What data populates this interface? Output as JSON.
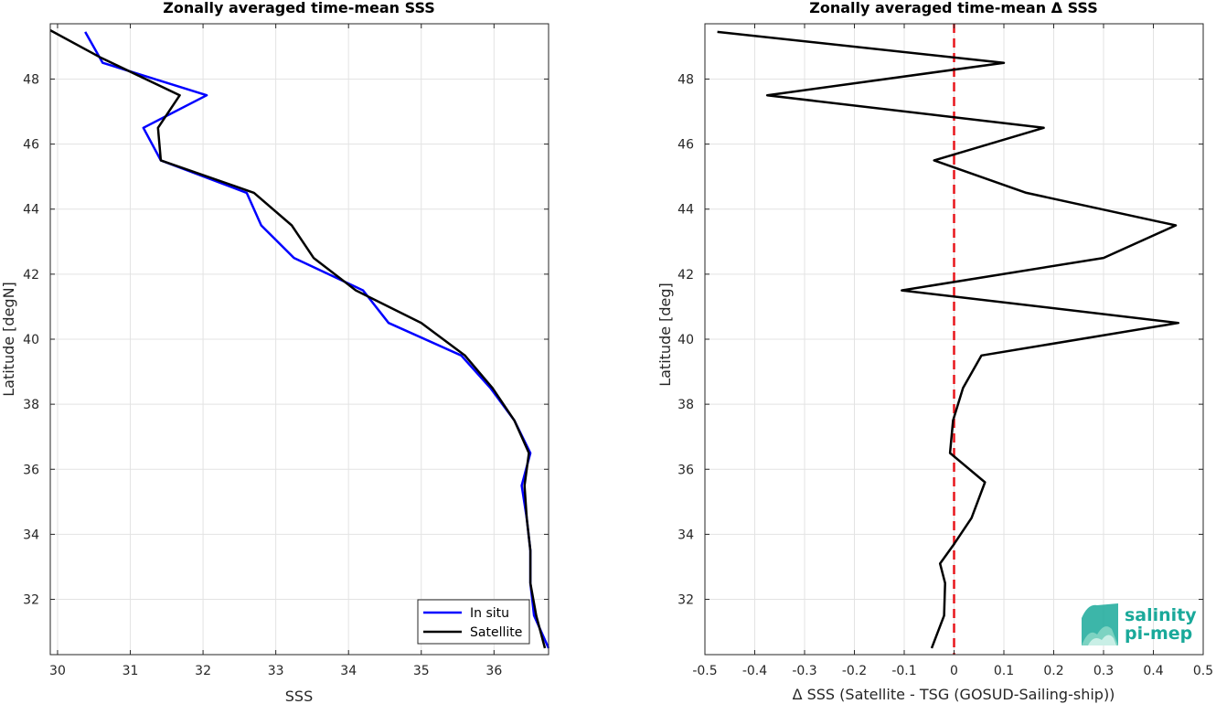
{
  "chart_data": [
    {
      "type": "line",
      "title": "Zonally averaged time-mean SSS",
      "xlabel": "SSS",
      "ylabel": "Latitude [degN]",
      "xlim": [
        29.9,
        36.75
      ],
      "ylim": [
        30.3,
        49.7
      ],
      "xticks": [
        30,
        31,
        32,
        33,
        34,
        35,
        36
      ],
      "yticks": [
        32,
        34,
        36,
        38,
        40,
        42,
        44,
        46,
        48
      ],
      "grid": true,
      "legend_position": "bottom-right",
      "series": [
        {
          "name": "In situ",
          "color": "#0000ff",
          "points": [
            [
              36.75,
              30.5
            ],
            [
              36.55,
              31.5
            ],
            [
              36.5,
              32.5
            ],
            [
              36.5,
              33.5
            ],
            [
              36.45,
              34.5
            ],
            [
              36.38,
              35.5
            ],
            [
              36.5,
              36.5
            ],
            [
              36.28,
              37.5
            ],
            [
              35.95,
              38.5
            ],
            [
              35.55,
              39.5
            ],
            [
              34.55,
              40.5
            ],
            [
              34.2,
              41.5
            ],
            [
              33.25,
              42.5
            ],
            [
              32.8,
              43.5
            ],
            [
              32.6,
              44.5
            ],
            [
              31.42,
              45.5
            ],
            [
              31.18,
              46.5
            ],
            [
              32.05,
              47.5
            ],
            [
              30.62,
              48.5
            ],
            [
              30.38,
              49.45
            ]
          ]
        },
        {
          "name": "Satellite",
          "color": "#000000",
          "points": [
            [
              36.7,
              30.5
            ],
            [
              36.58,
              31.5
            ],
            [
              36.5,
              32.5
            ],
            [
              36.5,
              33.5
            ],
            [
              36.45,
              34.5
            ],
            [
              36.42,
              35.5
            ],
            [
              36.48,
              36.5
            ],
            [
              36.28,
              37.5
            ],
            [
              35.98,
              38.5
            ],
            [
              35.6,
              39.5
            ],
            [
              35.0,
              40.5
            ],
            [
              34.1,
              41.5
            ],
            [
              33.52,
              42.5
            ],
            [
              33.22,
              43.5
            ],
            [
              32.7,
              44.5
            ],
            [
              31.42,
              45.5
            ],
            [
              31.38,
              46.5
            ],
            [
              31.68,
              47.5
            ],
            [
              30.6,
              48.65
            ],
            [
              29.9,
              49.5
            ]
          ]
        }
      ]
    },
    {
      "type": "line",
      "title": "Zonally averaged time-mean Δ SSS",
      "xlabel": "Δ SSS (Satellite - TSG (GOSUD-Sailing-ship))",
      "ylabel": "Latitude [deg]",
      "xlim": [
        -0.5,
        0.5
      ],
      "ylim": [
        30.3,
        49.7
      ],
      "xticks": [
        -0.5,
        -0.4,
        -0.3,
        -0.2,
        -0.1,
        0,
        0.1,
        0.2,
        0.3,
        0.4,
        0.5
      ],
      "xtick_labels": [
        "-0.5",
        "-0.4",
        "-0.3",
        "-0.2",
        "-0.1",
        "0",
        "0.1",
        "0.2",
        "0.3",
        "0.4",
        "0.5"
      ],
      "yticks": [
        32,
        34,
        36,
        38,
        40,
        42,
        44,
        46,
        48
      ],
      "grid": true,
      "reference_line": {
        "x": 0,
        "color": "#e8161c",
        "style": "dashed"
      },
      "series": [
        {
          "color": "#000000",
          "points": [
            [
              -0.045,
              30.5
            ],
            [
              -0.02,
              31.5
            ],
            [
              -0.018,
              32.5
            ],
            [
              -0.028,
              33.1
            ],
            [
              0.0,
              33.7
            ],
            [
              0.035,
              34.5
            ],
            [
              0.062,
              35.6
            ],
            [
              -0.008,
              36.5
            ],
            [
              -0.002,
              37.5
            ],
            [
              0.018,
              38.5
            ],
            [
              0.055,
              39.5
            ],
            [
              0.45,
              40.5
            ],
            [
              -0.105,
              41.5
            ],
            [
              0.3,
              42.5
            ],
            [
              0.445,
              43.5
            ],
            [
              0.145,
              44.5
            ],
            [
              -0.04,
              45.5
            ],
            [
              0.18,
              46.5
            ],
            [
              -0.375,
              47.5
            ],
            [
              0.1,
              48.5
            ],
            [
              -0.475,
              49.45
            ]
          ]
        }
      ]
    }
  ],
  "logo": {
    "line1": "salinity",
    "line2": "pi-mep",
    "color": "#1aa99a"
  }
}
